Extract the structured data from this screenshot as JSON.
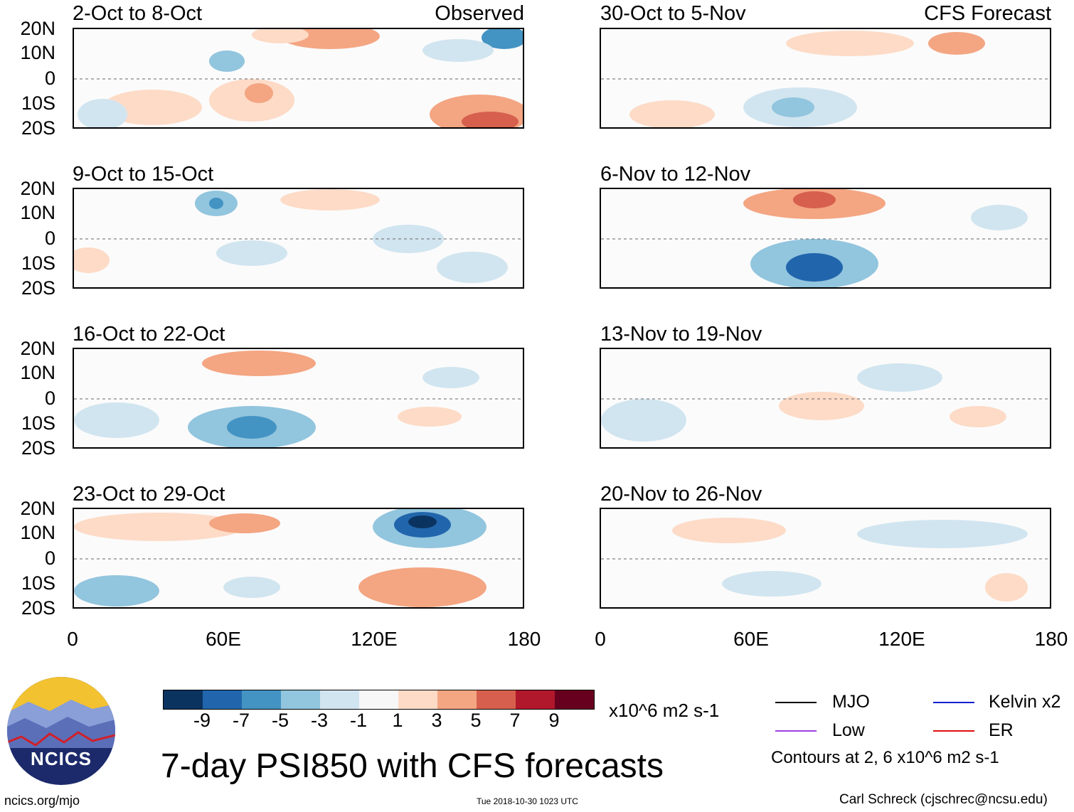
{
  "left_header": {
    "label": "Observed"
  },
  "right_header": {
    "label": "CFS Forecast"
  },
  "observed_panels": [
    {
      "title": "2-Oct to 8-Oct"
    },
    {
      "title": "9-Oct to 15-Oct"
    },
    {
      "title": "16-Oct to 22-Oct"
    },
    {
      "title": "23-Oct to 29-Oct"
    }
  ],
  "forecast_panels": [
    {
      "title": "30-Oct to 5-Nov"
    },
    {
      "title": "6-Nov to 12-Nov"
    },
    {
      "title": "13-Nov to 19-Nov"
    },
    {
      "title": "20-Nov to 26-Nov"
    }
  ],
  "y_ticks": [
    "20N",
    "10N",
    "0",
    "10S",
    "20S"
  ],
  "x_ticks": [
    "0",
    "60E",
    "120E",
    "180"
  ],
  "colorbar": {
    "labels": [
      "-9",
      "-7",
      "-5",
      "-3",
      "-1",
      "1",
      "3",
      "5",
      "7",
      "9"
    ],
    "colors": [
      "#0b3360",
      "#2166ac",
      "#4393c3",
      "#92c5de",
      "#d1e5f0",
      "#f7f7f7",
      "#fddbc7",
      "#f4a582",
      "#d6604d",
      "#b2182b",
      "#67001f"
    ],
    "units": "x10^6 m2 s-1"
  },
  "legend": {
    "mjo": "MJO",
    "low": "Low",
    "kelvin": "Kelvin x2",
    "er": "ER",
    "contours_note": "Contours at 2, 6 x10^6 m2 s-1",
    "colors": {
      "mjo": "#000000",
      "low": "#a040e0",
      "kelvin": "#1020d0",
      "er": "#e01010"
    }
  },
  "title": "7-day PSI850 with CFS forecasts",
  "logo_text": "NCICS",
  "footer": {
    "left": "ncics.org/mjo",
    "center": "Tue 2018-10-30 1023 UTC",
    "right": "Carl Schreck (cjschrec@ncsu.edu)"
  }
}
